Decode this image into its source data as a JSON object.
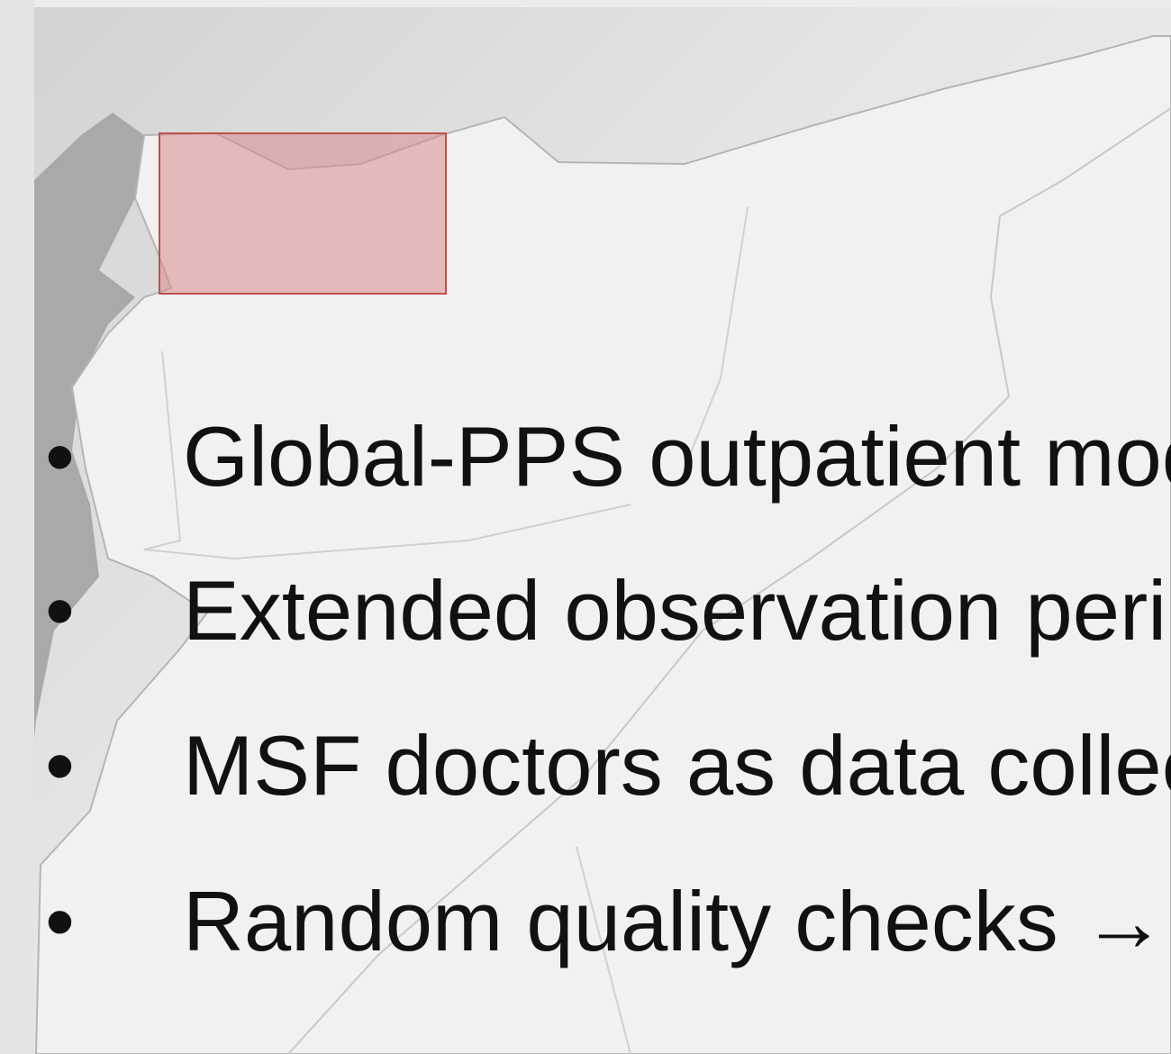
{
  "bullets": [
    "Global-PPS outpatient mod",
    "Extended observation peri",
    "MSF doctors as data collec"
  ],
  "last_bullet": {
    "text": "Random quality checks → ",
    "highlight": "N"
  }
}
